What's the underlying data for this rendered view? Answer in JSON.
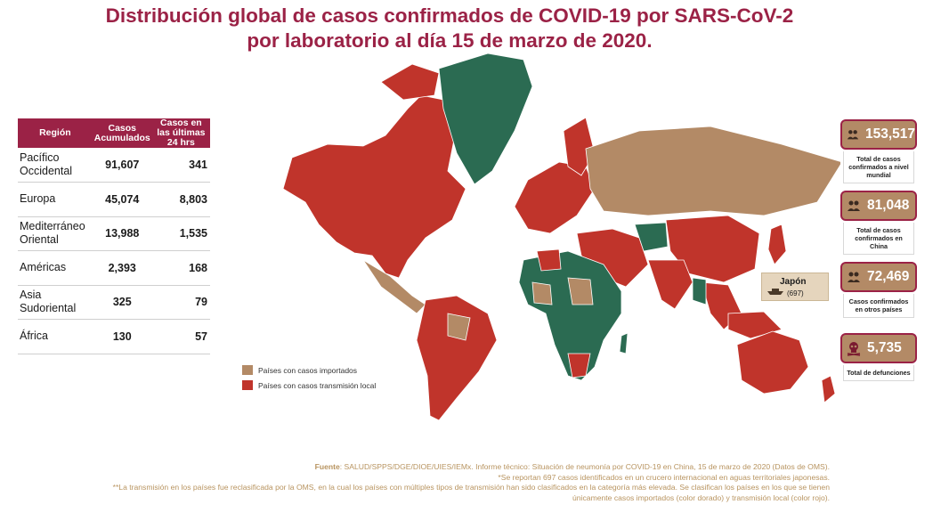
{
  "title": "Distribución global de casos confirmados de COVID-19 por SARS-CoV-2 por laboratorio al día 15 de marzo de 2020.",
  "table": {
    "headers": [
      "Región",
      "Casos Acumulados",
      "Casos en las últimas 24 hrs"
    ],
    "rows": [
      {
        "region": "Pacífico Occidental",
        "acumulados": "91,607",
        "ultimas24": "341"
      },
      {
        "region": "Europa",
        "acumulados": "45,074",
        "ultimas24": "8,803"
      },
      {
        "region": "Mediterráneo Oriental",
        "acumulados": "13,988",
        "ultimas24": "1,535"
      },
      {
        "region": "Américas",
        "acumulados": "2,393",
        "ultimas24": "168"
      },
      {
        "region": "Asia Sudoriental",
        "acumulados": "325",
        "ultimas24": "79"
      },
      {
        "region": "África",
        "acumulados": "130",
        "ultimas24": "57"
      }
    ]
  },
  "legend": {
    "imported": {
      "label": "Países con casos importados",
      "color": "#b38a66"
    },
    "local": {
      "label": "Países con casos transmisión local",
      "color": "#c0342b"
    }
  },
  "map_colors": {
    "no_cases": "#2b6b52",
    "imported": "#b38a66",
    "local": "#c0342b"
  },
  "japan": {
    "title": "Japón",
    "count": "(697)",
    "icon": "ship-icon"
  },
  "stats": [
    {
      "number": "153,517",
      "desc": "Total de casos confirmados a nivel mundial",
      "icon": "people-icon"
    },
    {
      "number": "81,048",
      "desc": "Total de casos confirmados en China",
      "icon": "people-icon"
    },
    {
      "number": "72,469",
      "desc": "Casos confirmados en otros países",
      "icon": "people-icon"
    },
    {
      "number": "5,735",
      "desc": "Total de defunciones",
      "icon": "skull-icon"
    }
  ],
  "footnotes": {
    "source_label": "Fuente",
    "source_text": ": SALUD/SPPS/DGE/DIOE/UIES/IEMx. Informe técnico: Situación de neumonía por COVID-19 en China, 15 de marzo de 2020 (Datos de OMS).",
    "note1": "*Se reportan 697 casos identificados en un crucero internacional en aguas territoriales japonesas.",
    "note2": "**La transmisión en los países fue reclasificada por la OMS, en la cual los países con múltiples tipos de transmisión han sido clasificados en la categoría más elevada. Se clasifican los países en los que se tienen únicamente casos importados (color dorado) y transmisión local (color rojo)."
  }
}
